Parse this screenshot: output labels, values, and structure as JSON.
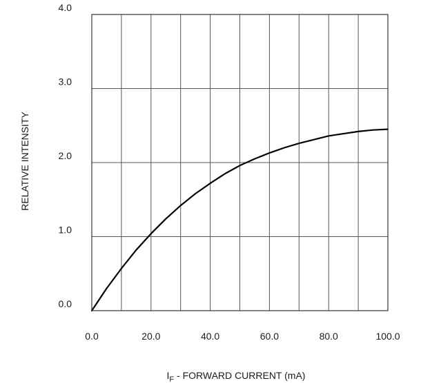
{
  "chart_data": {
    "type": "line",
    "title": "",
    "xlabel_prefix": "I",
    "xlabel_sub": "F",
    "xlabel_rest": " - FORWARD CURRENT (mA)",
    "ylabel": "RELATIVE INTENSITY",
    "xlim": [
      0,
      100
    ],
    "ylim": [
      0,
      4
    ],
    "x_ticks": [
      0,
      20,
      40,
      60,
      80,
      100
    ],
    "x_tick_labels": [
      "0.0",
      "20.0",
      "40.0",
      "60.0",
      "80.0",
      "100.0"
    ],
    "y_ticks": [
      0,
      1,
      2,
      3,
      4
    ],
    "y_tick_labels": [
      "0.0",
      "1.0",
      "2.0",
      "3.0",
      "4.0"
    ],
    "x_grid": [
      0,
      10,
      20,
      30,
      40,
      50,
      60,
      70,
      80,
      90,
      100
    ],
    "y_grid": [
      0,
      1,
      2,
      3,
      4
    ],
    "grid": true,
    "series": [
      {
        "color": "#000000",
        "x": [
          0,
          5,
          10,
          15,
          20,
          25,
          30,
          35,
          40,
          45,
          50,
          55,
          60,
          65,
          70,
          75,
          80,
          85,
          90,
          95,
          100
        ],
        "y": [
          0,
          0.3,
          0.57,
          0.82,
          1.04,
          1.24,
          1.42,
          1.58,
          1.72,
          1.85,
          1.96,
          2.05,
          2.13,
          2.2,
          2.26,
          2.31,
          2.36,
          2.39,
          2.42,
          2.44,
          2.45
        ]
      }
    ]
  }
}
